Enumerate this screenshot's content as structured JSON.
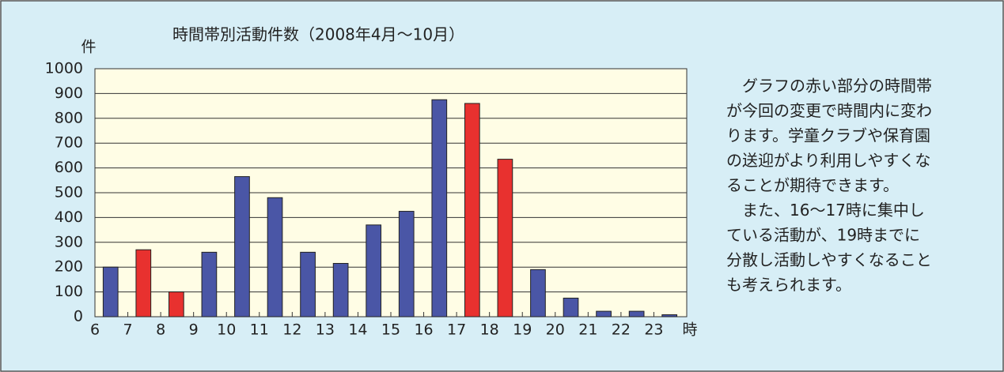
{
  "chart_data": {
    "type": "bar",
    "title": "時間帯別活動件数（2008年4月〜10月）",
    "y_axis_label": "件",
    "x_axis_label": "時",
    "x": [
      6,
      7,
      8,
      9,
      10,
      11,
      12,
      13,
      14,
      15,
      16,
      17,
      18,
      19,
      20,
      21,
      22,
      23
    ],
    "values": [
      200,
      270,
      100,
      260,
      565,
      480,
      260,
      215,
      370,
      425,
      875,
      860,
      635,
      190,
      75,
      22,
      22,
      8
    ],
    "colors": [
      "#4a56a6",
      "#e8312f",
      "#e8312f",
      "#4a56a6",
      "#4a56a6",
      "#4a56a6",
      "#4a56a6",
      "#4a56a6",
      "#4a56a6",
      "#4a56a6",
      "#4a56a6",
      "#e8312f",
      "#e8312f",
      "#4a56a6",
      "#4a56a6",
      "#4a56a6",
      "#4a56a6",
      "#4a56a6"
    ],
    "xlim": [
      6,
      24
    ],
    "xticks": [
      6,
      7,
      8,
      9,
      10,
      11,
      12,
      13,
      14,
      15,
      16,
      17,
      18,
      19,
      20,
      21,
      22,
      23
    ],
    "ylim": [
      0,
      1000
    ],
    "yticks": [
      0,
      100,
      200,
      300,
      400,
      500,
      600,
      700,
      800,
      900,
      1000
    ],
    "grid": true
  },
  "notes": {
    "paragraphs": [
      [
        "グラフの赤い部分の時間帯",
        "が今回の変更で時間内に変わ",
        "ります。学童クラブや保育園",
        "の送迎がより利用しやすくな",
        "ることが期待できます。"
      ],
      [
        "また、16〜17時に集中し",
        "ている活動が、19時までに",
        "分散し活動しやすくなること",
        "も考えられます。"
      ]
    ]
  }
}
